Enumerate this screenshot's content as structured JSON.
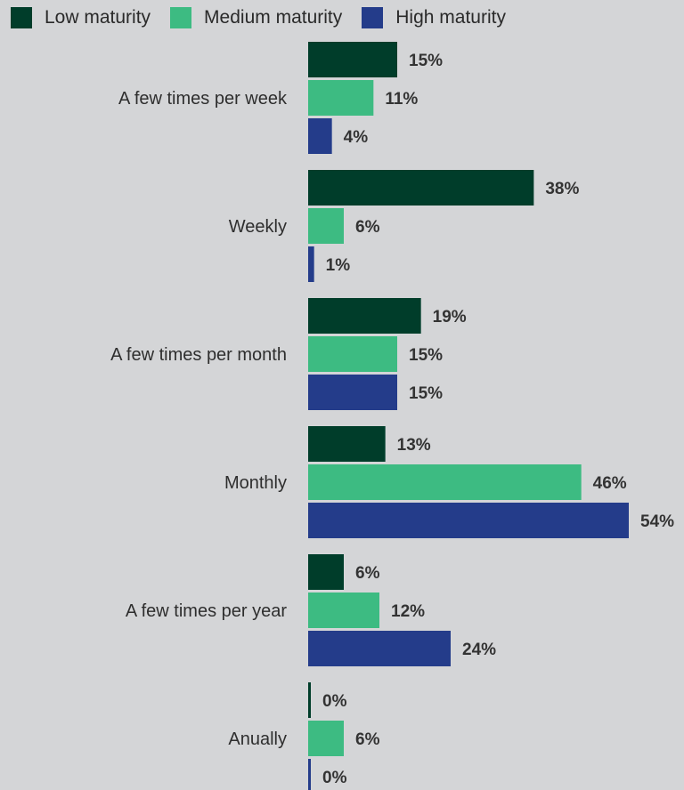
{
  "chart_data": {
    "type": "bar",
    "orientation": "horizontal",
    "title": "",
    "xlabel": "",
    "ylabel": "",
    "categories": [
      "A few times per week",
      "Weekly",
      "A few times per month",
      "Monthly",
      "A few times per year",
      "Anually"
    ],
    "series": [
      {
        "name": "Low maturity",
        "color": "#003d2a",
        "values": [
          15,
          38,
          19,
          13,
          6,
          0
        ]
      },
      {
        "name": "Medium maturity",
        "color": "#3dbb82",
        "values": [
          11,
          6,
          15,
          46,
          12,
          6
        ]
      },
      {
        "name": "High maturity",
        "color": "#243c8a",
        "values": [
          4,
          1,
          15,
          54,
          24,
          0
        ]
      }
    ],
    "value_suffix": "%",
    "xlim": [
      0,
      54
    ],
    "legend_position": "top-left",
    "grid": false
  }
}
